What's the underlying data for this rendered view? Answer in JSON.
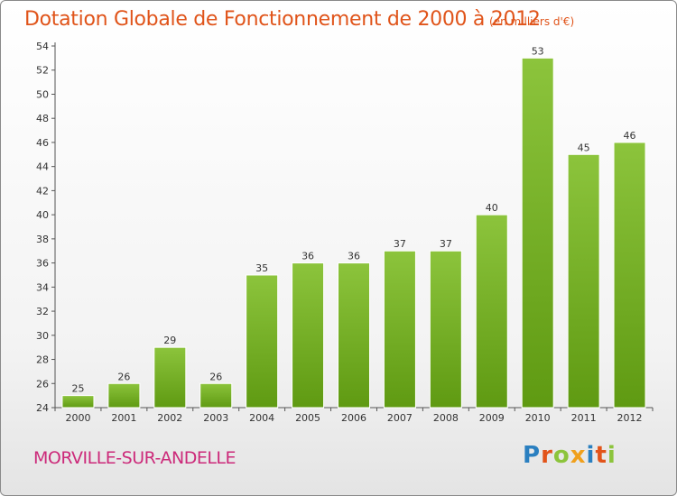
{
  "chart_data": {
    "type": "bar",
    "title": "Dotation Globale de Fonctionnement de 2000 à 2012",
    "subtitle": "(en milliers d'€)",
    "categories": [
      "2000",
      "2001",
      "2002",
      "2003",
      "2004",
      "2005",
      "2006",
      "2007",
      "2008",
      "2009",
      "2010",
      "2011",
      "2012"
    ],
    "values": [
      25,
      26,
      29,
      26,
      35,
      36,
      36,
      37,
      37,
      40,
      53,
      45,
      46
    ],
    "ylim": [
      24,
      54
    ],
    "yticks": [
      24,
      26,
      28,
      30,
      32,
      34,
      36,
      38,
      40,
      42,
      44,
      46,
      48,
      50,
      52,
      54
    ],
    "grid": false,
    "bar_color": "#8cc43c",
    "bar_color_dark": "#5f9a12"
  },
  "footer": {
    "commune": "MORVILLE-SUR-ANDELLE",
    "commune_color": "#cc2a7a",
    "logo_letters": [
      {
        "ch": "P",
        "color": "#2a7fc0"
      },
      {
        "ch": "r",
        "color": "#e2541a"
      },
      {
        "ch": "o",
        "color": "#8cc43c"
      },
      {
        "ch": "x",
        "color": "#f0a01c"
      },
      {
        "ch": "i",
        "color": "#2a7fc0"
      },
      {
        "ch": "t",
        "color": "#e2541a"
      },
      {
        "ch": "i",
        "color": "#8cc43c"
      }
    ]
  }
}
